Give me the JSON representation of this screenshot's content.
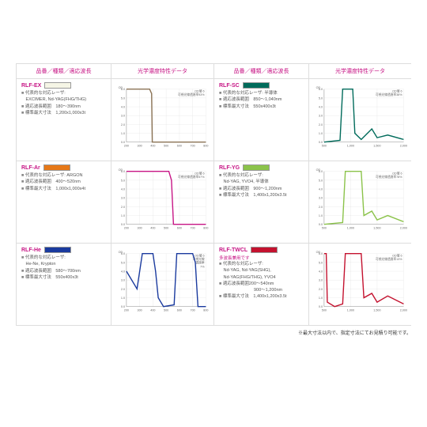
{
  "headers": [
    "品番／種類／適応波長",
    "光学濃度特性データ",
    "品番／種類／適応波長",
    "光学濃度特性データ"
  ],
  "footnote": "※最大寸法以内で、指定寸法にてお見積り可能です。",
  "products": [
    {
      "name": "RLF-EX",
      "swatch": "#f5f5e6",
      "subLabel": "",
      "specs": [
        "代表的な対応レーザ:\nEXCIMER, Nd-YAG(FHG/THG)",
        "適応波長範囲　180～390nm",
        "標準最大寸法　1,200x1,000x3t"
      ],
      "chart": {
        "color": "#8b7355",
        "xRange": [
          200,
          800
        ],
        "yRange": [
          0,
          6
        ],
        "xTicks": [
          200,
          300,
          400,
          500,
          600,
          700,
          800
        ],
        "yTicks": [
          0,
          1,
          2,
          3,
          4,
          5,
          6
        ],
        "odLabel": "OD値 6\n可視光線透過率93%",
        "points": [
          [
            200,
            6
          ],
          [
            375,
            6
          ],
          [
            390,
            5.5
          ],
          [
            395,
            0
          ],
          [
            800,
            0
          ]
        ]
      }
    },
    {
      "name": "RLF-SC",
      "swatch": "#006b5b",
      "subLabel": "",
      "specs": [
        "代表的な対応レーザ: 半導体",
        "適応波長範囲　850～1,040nm",
        "標準最大寸法　550x400x3t"
      ],
      "chart": {
        "color": "#006b5b",
        "xRange": [
          500,
          2000
        ],
        "yRange": [
          0,
          6
        ],
        "xTicks": [
          500,
          1000,
          1500,
          2000
        ],
        "yTicks": [
          0,
          1,
          2,
          3,
          4,
          5,
          6
        ],
        "odLabel": "OD値 6\n可視光線透過率38%",
        "points": [
          [
            500,
            0
          ],
          [
            800,
            0.2
          ],
          [
            850,
            6
          ],
          [
            1040,
            6
          ],
          [
            1080,
            1
          ],
          [
            1200,
            0.3
          ],
          [
            1400,
            1.5
          ],
          [
            1500,
            0.5
          ],
          [
            1700,
            0.8
          ],
          [
            2000,
            0.3
          ]
        ]
      }
    },
    {
      "name": "RLF-Ar",
      "swatch": "#e67817",
      "subLabel": "",
      "specs": [
        "代表的な対応レーザ: ARGON",
        "適応波長範囲　400～520nm",
        "標準最大寸法　1,000x1,000x4t"
      ],
      "chart": {
        "color": "#c71585",
        "xRange": [
          200,
          800
        ],
        "yRange": [
          0,
          6
        ],
        "xTicks": [
          200,
          300,
          400,
          500,
          600,
          700,
          800
        ],
        "yTicks": [
          0,
          1,
          2,
          3,
          4,
          5,
          6
        ],
        "odLabel": "OD値 6\n可視光線透過率57%",
        "points": [
          [
            200,
            6
          ],
          [
            400,
            6
          ],
          [
            520,
            6
          ],
          [
            540,
            5
          ],
          [
            555,
            0
          ],
          [
            800,
            0
          ]
        ]
      }
    },
    {
      "name": "RLF-YG",
      "swatch": "#8bc34a",
      "subLabel": "",
      "specs": [
        "代表的な対応レーザ:\nNd-YAG, YVO4, 半導体",
        "適応波長範囲　900～1,200nm",
        "標準最大寸法　1,400x1,200x3.5t"
      ],
      "chart": {
        "color": "#8bc34a",
        "xRange": [
          500,
          2000
        ],
        "yRange": [
          0,
          6
        ],
        "xTicks": [
          500,
          1000,
          1500,
          2000
        ],
        "yTicks": [
          0,
          1,
          2,
          3,
          4,
          5,
          6
        ],
        "odLabel": "OD値 6\n可視光線透過率78%",
        "points": [
          [
            500,
            0
          ],
          [
            850,
            0.2
          ],
          [
            900,
            6
          ],
          [
            1200,
            6
          ],
          [
            1250,
            1
          ],
          [
            1400,
            1.5
          ],
          [
            1500,
            0.5
          ],
          [
            1700,
            1
          ],
          [
            2000,
            0.3
          ]
        ]
      }
    },
    {
      "name": "RLF-He",
      "swatch": "#1a3a9e",
      "subLabel": "",
      "specs": [
        "代表的な対応レーザ:\nHe-Ne, Krypton",
        "適応波長範囲　580～700nm",
        "標準最大寸法　550x400x3t"
      ],
      "chart": {
        "color": "#1a3a9e",
        "xRange": [
          200,
          800
        ],
        "yRange": [
          0,
          6
        ],
        "xTicks": [
          200,
          300,
          400,
          500,
          600,
          700,
          800
        ],
        "yTicks": [
          0,
          1,
          2,
          3,
          4,
          5,
          6
        ],
        "odLabel": "OD値 6\n可視光線\n透過率\n7%",
        "points": [
          [
            200,
            4
          ],
          [
            280,
            2
          ],
          [
            320,
            6
          ],
          [
            400,
            6
          ],
          [
            420,
            4
          ],
          [
            440,
            1
          ],
          [
            480,
            0
          ],
          [
            560,
            0.2
          ],
          [
            580,
            6
          ],
          [
            700,
            6
          ],
          [
            720,
            5
          ],
          [
            740,
            0
          ],
          [
            800,
            0
          ]
        ]
      }
    },
    {
      "name": "RLF-TWCL",
      "swatch": "#c4122f",
      "subLabel": "多波長兼用です",
      "specs": [
        "代表的な対応レーザ:\nNd-YAG, Nd-YAG(SHG),\nNd-YAG(FHG/THG), YVO4",
        "適応波長範囲200～540nm\n　　　　　　　900～1,200nm",
        "標準最大寸法　1,400x1,200x3.5t"
      ],
      "chart": {
        "color": "#c4122f",
        "xRange": [
          500,
          2000
        ],
        "yRange": [
          0,
          6
        ],
        "xTicks": [
          500,
          1000,
          1500,
          2000
        ],
        "yTicks": [
          0,
          1,
          2,
          3,
          4,
          5,
          6
        ],
        "odLabel": "OD値 6\n可視光線透過率13%",
        "points": [
          [
            500,
            6
          ],
          [
            540,
            6
          ],
          [
            560,
            0.5
          ],
          [
            700,
            0
          ],
          [
            850,
            0.3
          ],
          [
            900,
            6
          ],
          [
            1200,
            6
          ],
          [
            1250,
            1
          ],
          [
            1400,
            1.5
          ],
          [
            1500,
            0.5
          ],
          [
            1700,
            1.2
          ],
          [
            2000,
            0.3
          ]
        ]
      }
    }
  ]
}
